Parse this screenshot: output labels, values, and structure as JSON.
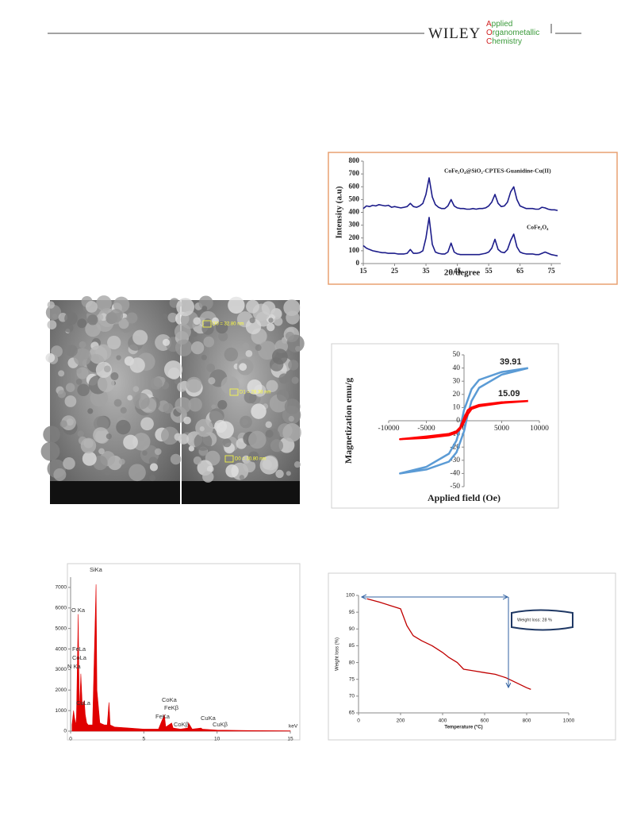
{
  "header": {
    "publisher": "WILEY",
    "journal": [
      "Applied",
      "Organometallic",
      "Chemistry"
    ]
  },
  "sem": {
    "labels": [
      "D0 = 32.80 nm",
      "D1 = 28.38 nm",
      "D0 = 30.80 nm"
    ]
  },
  "chart_data": [
    {
      "type": "line",
      "xlabel": "2θ/degree",
      "ylabel": "Intensity (a.u)",
      "xlim": [
        15,
        78
      ],
      "ylim": [
        0,
        800
      ],
      "xticks": [
        15,
        25,
        35,
        45,
        55,
        65,
        75
      ],
      "yticks": [
        0,
        100,
        200,
        300,
        400,
        500,
        600,
        700,
        800
      ],
      "x": [
        15,
        16,
        17,
        18,
        19,
        20,
        21,
        22,
        23,
        24,
        25,
        26,
        27,
        28,
        29,
        30,
        31,
        32,
        33,
        34,
        35,
        36,
        37,
        38,
        39,
        40,
        41,
        42,
        43,
        44,
        45,
        46,
        47,
        48,
        49,
        50,
        51,
        52,
        53,
        54,
        55,
        56,
        57,
        58,
        59,
        60,
        61,
        62,
        63,
        64,
        65,
        66,
        67,
        68,
        69,
        70,
        71,
        72,
        73,
        74,
        75,
        76,
        77
      ],
      "series": [
        {
          "name": "CoFe₂O₄@SiO₂-CPTES-Guanidine-Cu(II)",
          "color": "#1c1c8a",
          "values": [
            430,
            450,
            445,
            455,
            450,
            460,
            455,
            450,
            455,
            440,
            445,
            440,
            435,
            440,
            445,
            470,
            445,
            440,
            450,
            470,
            540,
            670,
            520,
            460,
            440,
            430,
            430,
            450,
            500,
            450,
            435,
            430,
            430,
            425,
            425,
            430,
            425,
            430,
            430,
            435,
            450,
            480,
            540,
            470,
            445,
            450,
            480,
            560,
            600,
            500,
            450,
            440,
            430,
            430,
            430,
            425,
            425,
            440,
            435,
            425,
            420,
            420,
            415
          ]
        },
        {
          "name": "CoFe₂O₄",
          "color": "#1c1c8a",
          "values": [
            140,
            120,
            110,
            100,
            95,
            90,
            85,
            85,
            80,
            80,
            80,
            75,
            75,
            75,
            80,
            110,
            80,
            80,
            85,
            100,
            200,
            360,
            150,
            90,
            80,
            75,
            75,
            90,
            160,
            90,
            75,
            70,
            70,
            70,
            70,
            70,
            70,
            70,
            75,
            80,
            90,
            120,
            190,
            110,
            90,
            85,
            110,
            180,
            230,
            130,
            90,
            80,
            75,
            75,
            75,
            70,
            70,
            80,
            90,
            80,
            70,
            65,
            60
          ]
        }
      ]
    },
    {
      "type": "line",
      "xlabel": "Applied field (Oe)",
      "ylabel": "Magnetization emu/g",
      "xlim": [
        -10000,
        10000
      ],
      "ylim": [
        -50,
        50
      ],
      "xticks": [
        -10000,
        -5000,
        0,
        5000,
        10000
      ],
      "yticks": [
        -50,
        -40,
        -30,
        -20,
        -10,
        0,
        10,
        20,
        30,
        40,
        50
      ],
      "axes_cross_zero": true,
      "series": [
        {
          "color": "#5b9bd5",
          "label": 39.91,
          "x": [
            8500,
            5000,
            2000,
            1000,
            500,
            0,
            -500,
            -1000,
            -2000,
            -5000,
            -8500,
            -5000,
            -2000,
            -1000,
            -500,
            0,
            500,
            1000,
            2000,
            5000,
            8500
          ],
          "values": [
            40,
            37,
            31,
            24,
            16,
            8,
            -5,
            -15,
            -25,
            -35,
            -40,
            -37,
            -31,
            -24,
            -16,
            -8,
            5,
            15,
            25,
            35,
            40
          ]
        },
        {
          "color": "#ff0000",
          "label": 15.09,
          "x": [
            8500,
            5000,
            2000,
            1000,
            500,
            0,
            -500,
            -1000,
            -2000,
            -5000,
            -8500,
            -5000,
            -2000,
            -1000,
            -500,
            0,
            500,
            1000,
            2000,
            5000,
            8500
          ],
          "values": [
            15,
            14,
            12,
            10,
            8,
            2,
            -5,
            -8,
            -10,
            -12,
            -14,
            -13,
            -11,
            -9,
            -6,
            -1,
            5,
            9,
            11,
            13.5,
            15
          ]
        }
      ]
    },
    {
      "type": "area",
      "xlabel": "keV",
      "xlim": [
        0,
        15
      ],
      "ylim": [
        0,
        7500
      ],
      "xticks": [
        0,
        5,
        10,
        15
      ],
      "yticks": [
        0,
        1000,
        2000,
        3000,
        4000,
        5000,
        6000,
        7000
      ],
      "color": "#e00000",
      "x": [
        0.1,
        0.2,
        0.28,
        0.35,
        0.4,
        0.52,
        0.6,
        0.7,
        0.8,
        0.93,
        1.0,
        1.1,
        1.2,
        1.5,
        1.74,
        1.8,
        2.0,
        2.3,
        2.5,
        2.62,
        2.7,
        3,
        4,
        5,
        6,
        6.4,
        6.5,
        6.9,
        7,
        7.5,
        8,
        8.05,
        8.3,
        8.9,
        9,
        10,
        12,
        15
      ],
      "values": [
        300,
        1000,
        600,
        300,
        700,
        5700,
        800,
        2800,
        1200,
        1500,
        800,
        400,
        300,
        300,
        7150,
        2000,
        400,
        300,
        300,
        1400,
        300,
        200,
        150,
        100,
        100,
        800,
        200,
        400,
        150,
        100,
        150,
        400,
        100,
        150,
        100,
        50,
        30,
        20
      ],
      "annotations": [
        "SiKa",
        "O Ka",
        "FeLa",
        "CoLa",
        "N Ka",
        "CuLa",
        "CoKa",
        "FeKβ",
        "FeKa",
        "CuKa",
        "CoKβ",
        "CuKβ"
      ]
    },
    {
      "type": "line",
      "xlabel": "Temperature (°C)",
      "ylabel": "Weight loss (%)",
      "xlim": [
        0,
        1000
      ],
      "ylim": [
        65,
        100
      ],
      "xticks": [
        0,
        200,
        400,
        600,
        800,
        1000
      ],
      "yticks": [
        65,
        70,
        75,
        80,
        85,
        90,
        95,
        100
      ],
      "annotation": "Weight loss: 28 %",
      "x": [
        40,
        100,
        150,
        200,
        230,
        260,
        300,
        350,
        400,
        430,
        470,
        500,
        550,
        600,
        650,
        700,
        750,
        800,
        820
      ],
      "series": [
        {
          "color": "#c00000",
          "values": [
            99,
            98,
            97,
            96,
            91,
            88,
            86.5,
            85,
            83,
            81.5,
            80,
            78,
            77.5,
            77,
            76.5,
            75.5,
            74,
            72.5,
            72
          ]
        }
      ]
    }
  ]
}
